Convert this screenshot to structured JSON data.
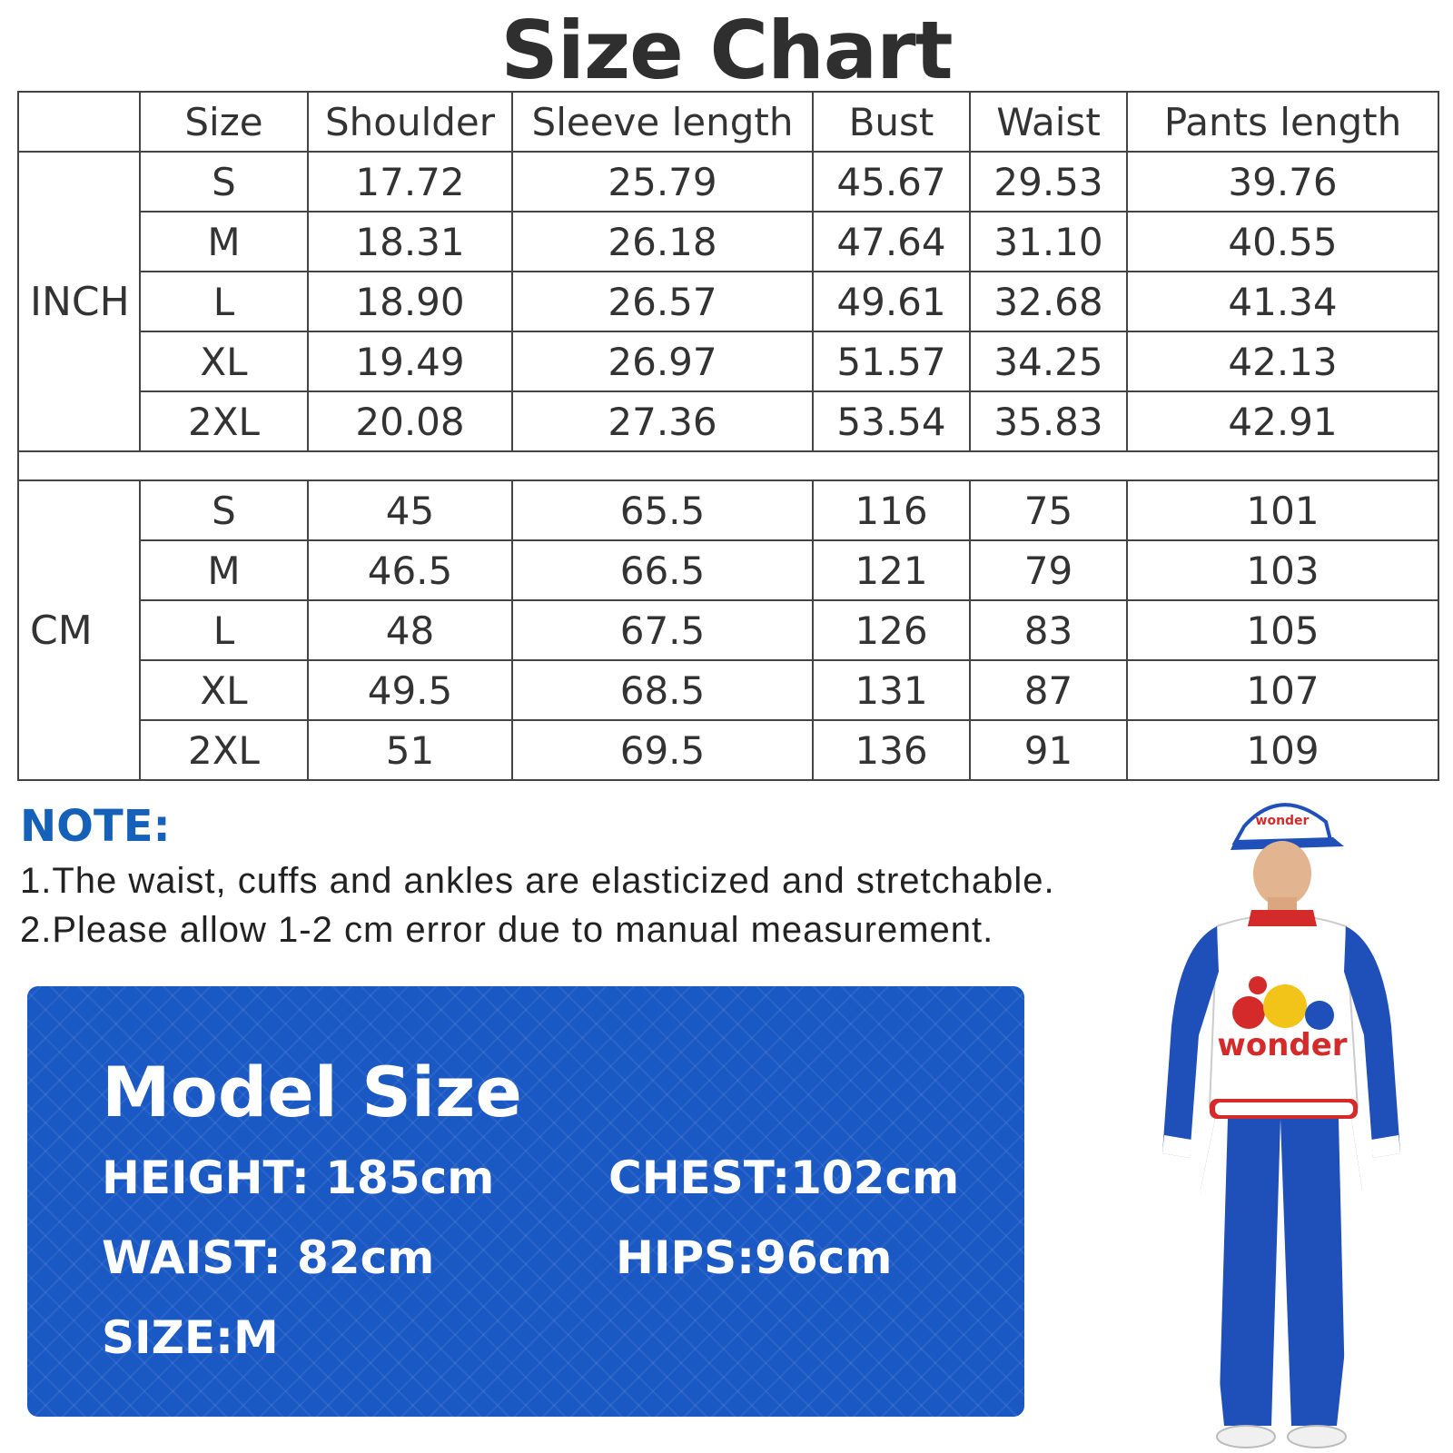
{
  "title": "Size Chart",
  "table": {
    "headers": [
      "",
      "Size",
      "Shoulder",
      "Sleeve length",
      "Bust",
      "Waist",
      "Pants length"
    ],
    "groups": [
      {
        "unit": "INCH",
        "rows": [
          [
            "S",
            "17.72",
            "25.79",
            "45.67",
            "29.53",
            "39.76"
          ],
          [
            "M",
            "18.31",
            "26.18",
            "47.64",
            "31.10",
            "40.55"
          ],
          [
            "L",
            "18.90",
            "26.57",
            "49.61",
            "32.68",
            "41.34"
          ],
          [
            "XL",
            "19.49",
            "26.97",
            "51.57",
            "34.25",
            "42.13"
          ],
          [
            "2XL",
            "20.08",
            "27.36",
            "53.54",
            "35.83",
            "42.91"
          ]
        ]
      },
      {
        "unit": "CM",
        "rows": [
          [
            "S",
            "45",
            "65.5",
            "116",
            "75",
            "101"
          ],
          [
            "M",
            "46.5",
            "66.5",
            "121",
            "79",
            "103"
          ],
          [
            "L",
            "48",
            "67.5",
            "126",
            "83",
            "105"
          ],
          [
            "XL",
            "49.5",
            "68.5",
            "131",
            "87",
            "107"
          ],
          [
            "2XL",
            "51",
            "69.5",
            "136",
            "91",
            "109"
          ]
        ]
      }
    ]
  },
  "note": {
    "heading": "NOTE:",
    "lines": [
      "1.The waist, cuffs and ankles are elasticized and stretchable.",
      "2.Please allow 1-2 cm error due to manual measurement."
    ]
  },
  "model": {
    "title": "Model Size",
    "height": "HEIGHT: 185cm",
    "chest": "CHEST:102cm",
    "waist": "WAIST: 82cm",
    "hips": "HIPS:96cm",
    "size": "SIZE:M"
  },
  "figure": {
    "cap_text": "wonder",
    "chest_text": "wonder",
    "colors": {
      "blue": "#1f4fb8",
      "red": "#d42a2a",
      "yellow": "#f2c318",
      "white": "#ffffff"
    }
  }
}
